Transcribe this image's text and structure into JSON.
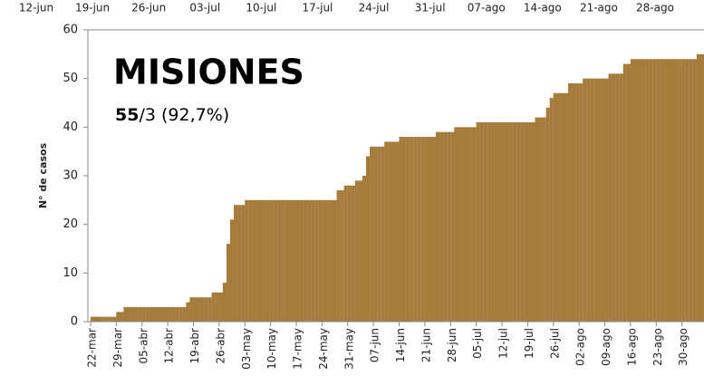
{
  "chart_data": {
    "type": "bar",
    "title": "MISIONES",
    "subtitle_bold": "55",
    "subtitle": "/3 (92,7%)",
    "ylabel": "N° de casos",
    "top_axis_labels": [
      "12-jun",
      "19-jun",
      "26-jun",
      "03-jul",
      "10-jul",
      "17-jul",
      "24-jul",
      "31-jul",
      "07-ago",
      "14-ago",
      "21-ago",
      "28-ago"
    ],
    "color": "#a57c3b",
    "ylim": [
      0,
      60
    ],
    "yticks": [
      0,
      10,
      20,
      30,
      40,
      50,
      60
    ],
    "categories": [
      "22-mar",
      null,
      null,
      null,
      null,
      null,
      null,
      "29-mar",
      null,
      null,
      null,
      null,
      null,
      null,
      "05-abr",
      null,
      null,
      null,
      null,
      null,
      null,
      "12-abr",
      null,
      null,
      null,
      null,
      null,
      null,
      "19-abr",
      null,
      null,
      null,
      null,
      null,
      null,
      "26-abr",
      null,
      null,
      null,
      null,
      null,
      null,
      "03-may",
      null,
      null,
      null,
      null,
      null,
      null,
      "10-may",
      null,
      null,
      null,
      null,
      null,
      null,
      "17-may",
      null,
      null,
      null,
      null,
      null,
      null,
      "24-may",
      null,
      null,
      null,
      null,
      null,
      null,
      "31-may",
      null,
      null,
      null,
      null,
      null,
      null,
      "07-jun",
      null,
      null,
      null,
      null,
      null,
      null,
      "14-jun",
      null,
      null,
      null,
      null,
      null,
      null,
      "21-jun",
      null,
      null,
      null,
      null,
      null,
      null,
      "28-jun",
      null,
      null,
      null,
      null,
      null,
      null,
      "05-jul",
      null,
      null,
      null,
      null,
      null,
      null,
      "12-jul",
      null,
      null,
      null,
      null,
      null,
      null,
      "19-jul",
      null,
      null,
      null,
      null,
      null,
      null,
      "26-jul",
      null,
      null,
      null,
      null,
      null,
      null,
      "02-ago",
      null,
      null,
      null,
      null,
      null,
      null,
      "09-ago",
      null,
      null,
      null,
      null,
      null,
      null,
      "16-ago",
      null,
      null,
      null,
      null,
      null,
      null,
      "23-ago",
      null,
      null,
      null,
      null,
      null,
      null,
      "30-ago",
      null,
      null,
      null,
      null,
      null
    ],
    "values": [
      1,
      1,
      1,
      1,
      1,
      1,
      1,
      2,
      2,
      3,
      3,
      3,
      3,
      3,
      3,
      3,
      3,
      3,
      3,
      3,
      3,
      3,
      3,
      3,
      3,
      3,
      4,
      5,
      5,
      5,
      5,
      5,
      5,
      6,
      6,
      6,
      8,
      16,
      21,
      24,
      24,
      24,
      25,
      25,
      25,
      25,
      25,
      25,
      25,
      25,
      25,
      25,
      25,
      25,
      25,
      25,
      25,
      25,
      25,
      25,
      25,
      25,
      25,
      25,
      25,
      25,
      25,
      27,
      27,
      28,
      28,
      28,
      29,
      29,
      30,
      34,
      36,
      36,
      36,
      36,
      37,
      37,
      37,
      37,
      38,
      38,
      38,
      38,
      38,
      38,
      38,
      38,
      38,
      38,
      39,
      39,
      39,
      39,
      39,
      40,
      40,
      40,
      40,
      40,
      40,
      41,
      41,
      41,
      41,
      41,
      41,
      41,
      41,
      41,
      41,
      41,
      41,
      41,
      41,
      41,
      41,
      42,
      42,
      42,
      44,
      46,
      47,
      47,
      47,
      47,
      49,
      49,
      49,
      49,
      50,
      50,
      50,
      50,
      50,
      50,
      50,
      51,
      51,
      51,
      51,
      53,
      53,
      54,
      54,
      54,
      54,
      54,
      54,
      54,
      54,
      54,
      54,
      54,
      54,
      54,
      54,
      54,
      54,
      54,
      54,
      55,
      55
    ]
  }
}
